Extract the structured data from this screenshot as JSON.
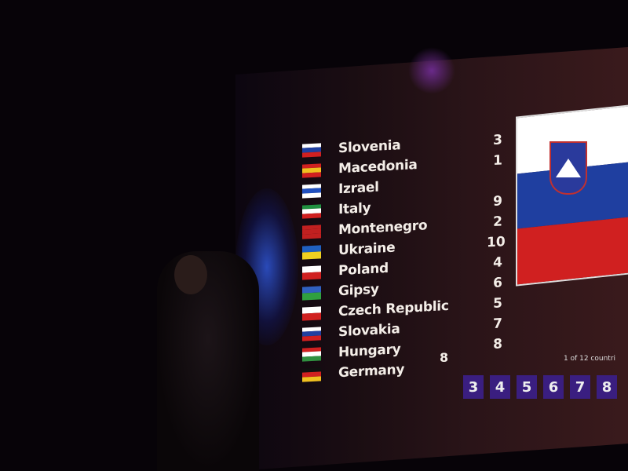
{
  "scoreboard": {
    "rows": [
      {
        "country": "Slovenia",
        "points": "3",
        "flag": [
          "#ffffff",
          "#1f3fa0",
          "#d02020"
        ]
      },
      {
        "country": "Macedonia",
        "points": "1",
        "flag": [
          "#d02020",
          "#f0c020",
          "#d02020"
        ]
      },
      {
        "country": "Izrael",
        "points": "",
        "flag": [
          "#ffffff",
          "#2050c0",
          "#ffffff"
        ]
      },
      {
        "country": "Italy",
        "points": "9",
        "flag": [
          "#209040",
          "#ffffff",
          "#d02020"
        ]
      },
      {
        "country": "Montenegro",
        "points": "2",
        "flag": [
          "#c02020",
          "#c02020",
          "#c02020"
        ]
      },
      {
        "country": "Ukraine",
        "points": "10",
        "flag": [
          "#2060c0",
          "#f0d020"
        ]
      },
      {
        "country": "Poland",
        "points": "4",
        "flag": [
          "#ffffff",
          "#d02020"
        ]
      },
      {
        "country": "Gipsy",
        "points": "6",
        "flag": [
          "#3060c0",
          "#30a040"
        ]
      },
      {
        "country": "Czech Republic",
        "points": "5",
        "flag": [
          "#ffffff",
          "#d02020"
        ]
      },
      {
        "country": "Slovakia",
        "points": "7",
        "flag": [
          "#ffffff",
          "#2040a0",
          "#d02020"
        ]
      },
      {
        "country": "Hungary",
        "points": "8",
        "flag": [
          "#d02020",
          "#ffffff",
          "#309040"
        ]
      },
      {
        "country": "Germany",
        "points": "",
        "flag": [
          "#101010",
          "#d02020",
          "#f0c020"
        ]
      }
    ],
    "extra_point_label": "8",
    "current_flag": [
      "#ffffff",
      "#1f3fa0",
      "#d02020"
    ],
    "counter_text": "1 of 12 countri",
    "point_buttons": [
      "3",
      "4",
      "5",
      "6",
      "7",
      "8"
    ],
    "button_color": "#3a1e80"
  }
}
